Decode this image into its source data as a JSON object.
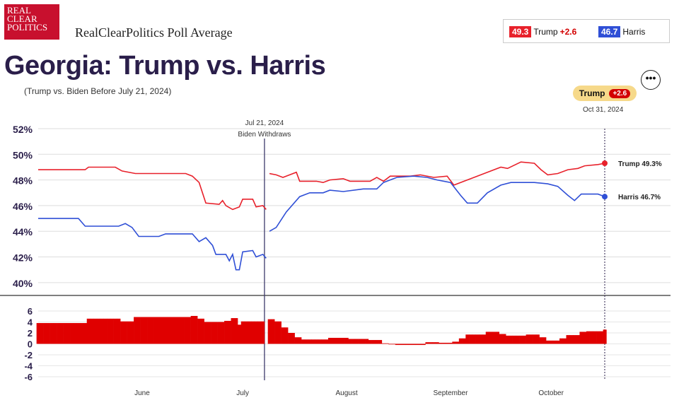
{
  "logo": {
    "line1": "REAL",
    "line2": "CLEAR",
    "line3": "POLITICS"
  },
  "site_title": "RealClearPolitics Poll Average",
  "legend": {
    "trump_value": "49.3",
    "trump_name": "Trump",
    "trump_diff": "+2.6",
    "harris_value": "46.7",
    "harris_name": "Harris"
  },
  "title": "Georgia: Trump vs. Harris",
  "subtitle": "(Trump vs. Biden Before July 21, 2024)",
  "more_button": "•••",
  "spread_badge": {
    "name": "Trump",
    "value": "+2.6"
  },
  "end_date": "Oct 31, 2024",
  "colors": {
    "trump": "#e8212b",
    "harris": "#2f4fd6",
    "annotation": "#3d3a6b"
  },
  "chart_data": {
    "type": "line",
    "x_range": [
      "2024-05-15",
      "2024-10-31"
    ],
    "month_labels": [
      "June",
      "July",
      "August",
      "September",
      "October"
    ],
    "annotation": {
      "date": "2024-07-21",
      "label1": "Jul 21, 2024",
      "label2": "Biden Withdraws"
    },
    "ylim": [
      39,
      52
    ],
    "yticks": [
      "52%",
      "50%",
      "48%",
      "46%",
      "44%",
      "42%",
      "40%"
    ],
    "series": [
      {
        "name": "Trump",
        "end_label": "Trump 49.3%",
        "points": [
          [
            "2024-05-15",
            48.8
          ],
          [
            "2024-05-29",
            48.8
          ],
          [
            "2024-05-30",
            49.0
          ],
          [
            "2024-06-07",
            49.0
          ],
          [
            "2024-06-09",
            48.7
          ],
          [
            "2024-06-13",
            48.5
          ],
          [
            "2024-06-28",
            48.5
          ],
          [
            "2024-06-30",
            48.3
          ],
          [
            "2024-07-02",
            47.8
          ],
          [
            "2024-07-04",
            46.2
          ],
          [
            "2024-07-08",
            46.1
          ],
          [
            "2024-07-09",
            46.4
          ],
          [
            "2024-07-10",
            46.0
          ],
          [
            "2024-07-12",
            45.7
          ],
          [
            "2024-07-14",
            45.9
          ],
          [
            "2024-07-15",
            46.5
          ],
          [
            "2024-07-18",
            46.5
          ],
          [
            "2024-07-19",
            45.9
          ],
          [
            "2024-07-21",
            46.0
          ],
          [
            "2024-07-22",
            45.7
          ],
          [
            "2024-07-23",
            null
          ],
          [
            "2024-07-23",
            48.5
          ],
          [
            "2024-07-25",
            48.4
          ],
          [
            "2024-07-27",
            48.2
          ],
          [
            "2024-07-29",
            48.4
          ],
          [
            "2024-07-31",
            48.6
          ],
          [
            "2024-08-01",
            47.9
          ],
          [
            "2024-08-06",
            47.9
          ],
          [
            "2024-08-08",
            47.8
          ],
          [
            "2024-08-10",
            48.0
          ],
          [
            "2024-08-14",
            48.1
          ],
          [
            "2024-08-16",
            47.9
          ],
          [
            "2024-08-22",
            47.9
          ],
          [
            "2024-08-24",
            48.2
          ],
          [
            "2024-08-26",
            47.9
          ],
          [
            "2024-08-28",
            48.3
          ],
          [
            "2024-09-03",
            48.3
          ],
          [
            "2024-09-06",
            48.4
          ],
          [
            "2024-09-10",
            48.2
          ],
          [
            "2024-09-14",
            48.3
          ],
          [
            "2024-09-16",
            47.6
          ],
          [
            "2024-09-18",
            47.8
          ],
          [
            "2024-09-22",
            48.2
          ],
          [
            "2024-09-26",
            48.6
          ],
          [
            "2024-09-30",
            49.0
          ],
          [
            "2024-10-02",
            48.9
          ],
          [
            "2024-10-06",
            49.4
          ],
          [
            "2024-10-10",
            49.3
          ],
          [
            "2024-10-12",
            48.8
          ],
          [
            "2024-10-14",
            48.4
          ],
          [
            "2024-10-17",
            48.5
          ],
          [
            "2024-10-20",
            48.8
          ],
          [
            "2024-10-23",
            48.9
          ],
          [
            "2024-10-25",
            49.1
          ],
          [
            "2024-10-29",
            49.2
          ],
          [
            "2024-10-31",
            49.3
          ]
        ]
      },
      {
        "name": "Harris",
        "end_label": "Harris 46.7%",
        "points": [
          [
            "2024-05-15",
            45.0
          ],
          [
            "2024-05-27",
            45.0
          ],
          [
            "2024-05-29",
            44.4
          ],
          [
            "2024-06-08",
            44.4
          ],
          [
            "2024-06-10",
            44.6
          ],
          [
            "2024-06-12",
            44.3
          ],
          [
            "2024-06-14",
            43.6
          ],
          [
            "2024-06-20",
            43.6
          ],
          [
            "2024-06-22",
            43.8
          ],
          [
            "2024-06-30",
            43.8
          ],
          [
            "2024-07-02",
            43.2
          ],
          [
            "2024-07-04",
            43.5
          ],
          [
            "2024-07-06",
            42.9
          ],
          [
            "2024-07-07",
            42.2
          ],
          [
            "2024-07-10",
            42.2
          ],
          [
            "2024-07-11",
            41.7
          ],
          [
            "2024-07-12",
            42.2
          ],
          [
            "2024-07-13",
            41.0
          ],
          [
            "2024-07-14",
            41.0
          ],
          [
            "2024-07-15",
            42.4
          ],
          [
            "2024-07-18",
            42.5
          ],
          [
            "2024-07-19",
            42.0
          ],
          [
            "2024-07-21",
            42.2
          ],
          [
            "2024-07-22",
            41.9
          ],
          [
            "2024-07-23",
            null
          ],
          [
            "2024-07-23",
            44.0
          ],
          [
            "2024-07-25",
            44.3
          ],
          [
            "2024-07-28",
            45.5
          ],
          [
            "2024-08-01",
            46.7
          ],
          [
            "2024-08-04",
            47.0
          ],
          [
            "2024-08-08",
            47.0
          ],
          [
            "2024-08-10",
            47.2
          ],
          [
            "2024-08-14",
            47.1
          ],
          [
            "2024-08-20",
            47.3
          ],
          [
            "2024-08-24",
            47.3
          ],
          [
            "2024-08-26",
            47.8
          ],
          [
            "2024-08-30",
            48.2
          ],
          [
            "2024-09-04",
            48.3
          ],
          [
            "2024-09-08",
            48.2
          ],
          [
            "2024-09-11",
            48.0
          ],
          [
            "2024-09-15",
            47.8
          ],
          [
            "2024-09-18",
            46.8
          ],
          [
            "2024-09-20",
            46.2
          ],
          [
            "2024-09-23",
            46.2
          ],
          [
            "2024-09-26",
            47.0
          ],
          [
            "2024-09-30",
            47.6
          ],
          [
            "2024-10-03",
            47.8
          ],
          [
            "2024-10-10",
            47.8
          ],
          [
            "2024-10-14",
            47.7
          ],
          [
            "2024-10-17",
            47.5
          ],
          [
            "2024-10-20",
            46.8
          ],
          [
            "2024-10-22",
            46.4
          ],
          [
            "2024-10-24",
            46.9
          ],
          [
            "2024-10-29",
            46.9
          ],
          [
            "2024-10-31",
            46.7
          ]
        ]
      }
    ],
    "spread": {
      "ylim": [
        -6,
        6
      ],
      "yticks": [
        "6",
        "4",
        "2",
        "0",
        "-2",
        "-4",
        "-6"
      ],
      "points": [
        [
          "2024-05-15",
          3.8
        ],
        [
          "2024-05-29",
          3.8
        ],
        [
          "2024-05-30",
          4.6
        ],
        [
          "2024-06-07",
          4.6
        ],
        [
          "2024-06-09",
          4.1
        ],
        [
          "2024-06-13",
          4.9
        ],
        [
          "2024-06-28",
          4.9
        ],
        [
          "2024-06-30",
          5.1
        ],
        [
          "2024-07-02",
          4.6
        ],
        [
          "2024-07-04",
          4.0
        ],
        [
          "2024-07-10",
          4.2
        ],
        [
          "2024-07-12",
          4.7
        ],
        [
          "2024-07-14",
          3.5
        ],
        [
          "2024-07-15",
          4.1
        ],
        [
          "2024-07-22",
          3.8
        ],
        [
          "2024-07-23",
          4.5
        ],
        [
          "2024-07-25",
          4.1
        ],
        [
          "2024-07-27",
          3.0
        ],
        [
          "2024-07-29",
          2.0
        ],
        [
          "2024-07-31",
          1.2
        ],
        [
          "2024-08-02",
          0.8
        ],
        [
          "2024-08-08",
          0.8
        ],
        [
          "2024-08-10",
          1.1
        ],
        [
          "2024-08-16",
          0.9
        ],
        [
          "2024-08-22",
          0.7
        ],
        [
          "2024-08-26",
          0.1
        ],
        [
          "2024-08-28",
          0.0
        ],
        [
          "2024-08-30",
          -0.2
        ],
        [
          "2024-09-06",
          -0.2
        ],
        [
          "2024-09-08",
          0.3
        ],
        [
          "2024-09-12",
          0.2
        ],
        [
          "2024-09-16",
          0.4
        ],
        [
          "2024-09-18",
          1.0
        ],
        [
          "2024-09-20",
          1.7
        ],
        [
          "2024-09-26",
          2.2
        ],
        [
          "2024-09-30",
          1.8
        ],
        [
          "2024-10-02",
          1.5
        ],
        [
          "2024-10-08",
          1.7
        ],
        [
          "2024-10-12",
          1.2
        ],
        [
          "2024-10-14",
          0.6
        ],
        [
          "2024-10-18",
          1.0
        ],
        [
          "2024-10-20",
          1.6
        ],
        [
          "2024-10-24",
          2.2
        ],
        [
          "2024-10-26",
          2.3
        ],
        [
          "2024-10-31",
          2.6
        ]
      ]
    }
  }
}
